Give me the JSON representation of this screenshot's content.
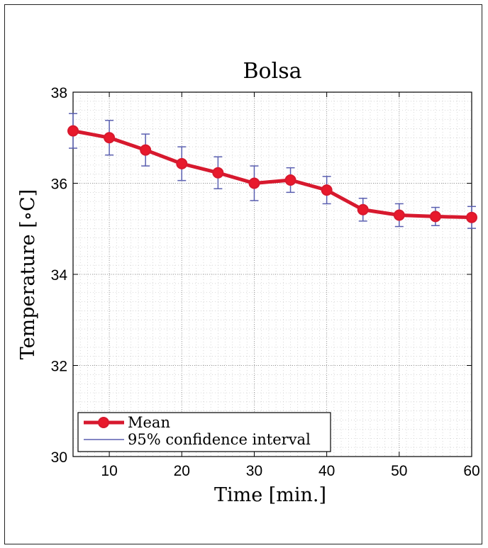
{
  "chart_data": {
    "type": "line",
    "title": "Bolsa",
    "xlabel": "Time [min.]",
    "ylabel": "Temperature [∘C]",
    "xlim": [
      5,
      60
    ],
    "ylim": [
      30,
      38
    ],
    "xticks": [
      10,
      20,
      30,
      40,
      50,
      60
    ],
    "yticks": [
      30,
      32,
      34,
      36,
      38
    ],
    "grid": true,
    "legend_position": "bottom-left",
    "x": [
      5,
      10,
      15,
      20,
      25,
      30,
      35,
      40,
      45,
      50,
      55,
      60
    ],
    "series": [
      {
        "name": "Mean",
        "color": "#d7192e",
        "values": [
          37.15,
          37.0,
          36.73,
          36.43,
          36.23,
          36.0,
          36.07,
          35.85,
          35.42,
          35.3,
          35.27,
          35.25
        ],
        "ci_lower": [
          36.77,
          36.62,
          36.38,
          36.06,
          35.88,
          35.62,
          35.8,
          35.55,
          35.17,
          35.05,
          35.07,
          35.01
        ],
        "ci_upper": [
          37.53,
          37.38,
          37.08,
          36.8,
          36.58,
          36.38,
          36.34,
          36.15,
          35.67,
          35.55,
          35.47,
          35.49
        ]
      }
    ],
    "ci_label": "95% confidence interval",
    "ci_color": "#5a5fb0"
  }
}
